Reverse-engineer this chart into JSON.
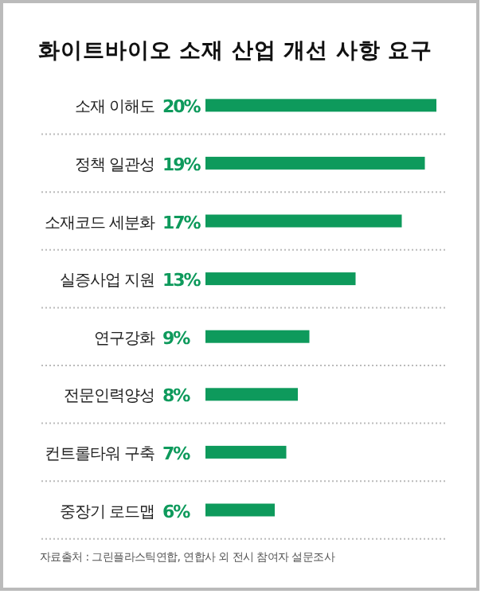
{
  "chart_data": {
    "type": "bar",
    "orientation": "horizontal",
    "title": "화이트바이오 소재 산업 개선 사항 요구",
    "categories": [
      "소재 이해도",
      "정책 일관성",
      "소재코드 세분화",
      "실증사업 지원",
      "연구강화",
      "전문인력양성",
      "컨트롤타워 구축",
      "중장기 로드맵"
    ],
    "values": [
      20,
      19,
      17,
      13,
      9,
      8,
      7,
      6
    ],
    "value_labels": [
      "20%",
      "19%",
      "17%",
      "13%",
      "9%",
      "8%",
      "7%",
      "6%"
    ],
    "color": "#0e9a5c",
    "annotations": [
      "자료출처 : 그린플라스틱연합, 연합사 외 전시 참여자 설문조사"
    ]
  }
}
